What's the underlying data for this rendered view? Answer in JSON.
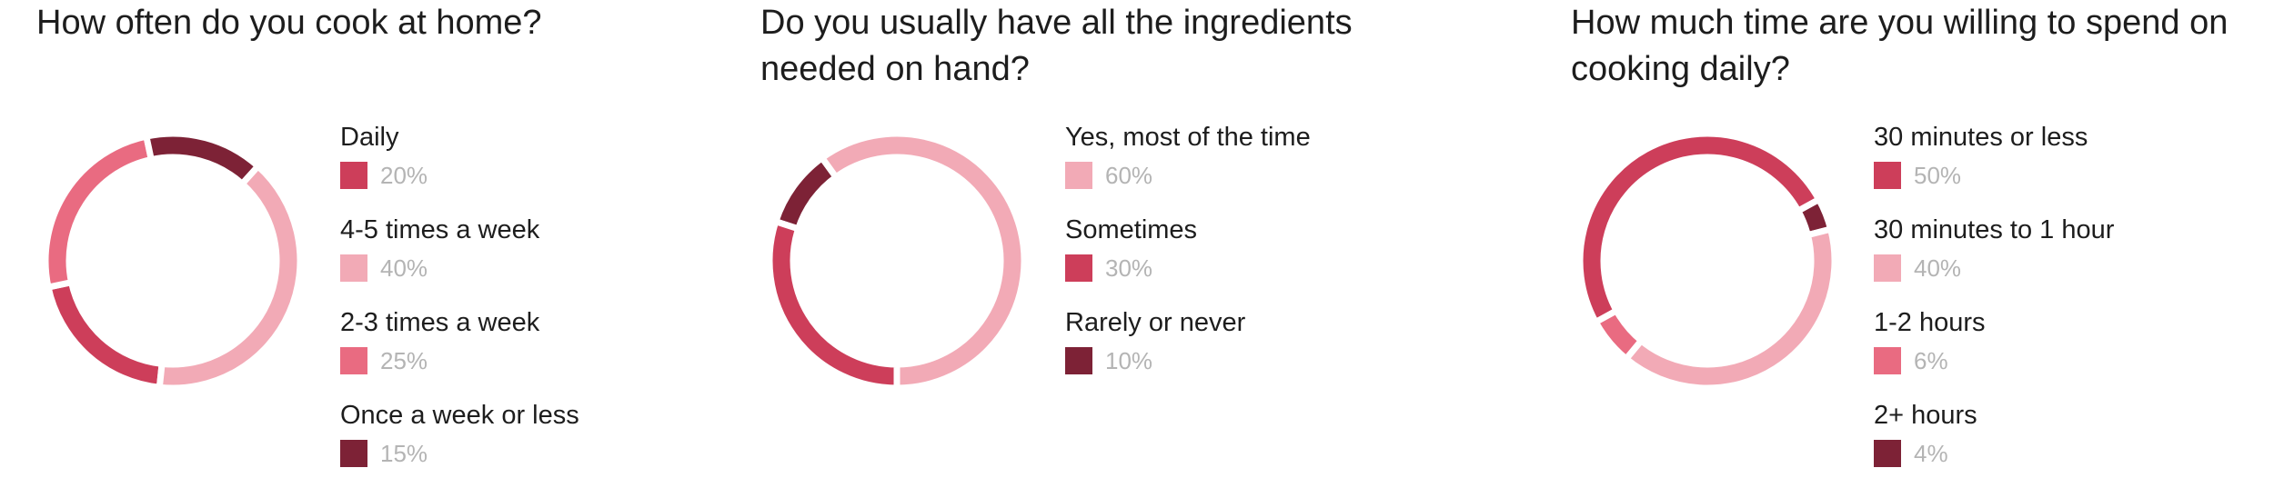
{
  "chart_data": [
    {
      "type": "pie",
      "title": "How often do you cook at home?",
      "categories": [
        "Daily",
        "4-5 times a week",
        "2-3 times a week",
        "Once a week or less"
      ],
      "values": [
        20,
        40,
        25,
        15
      ],
      "value_labels": [
        "20%",
        "40%",
        "25%",
        "15%"
      ],
      "colors": [
        "#cd3e5a",
        "#f2aab6",
        "#e96b81",
        "#7d2236"
      ],
      "legend": "right",
      "start_angle_deg": 186,
      "slice_order": [
        0,
        2,
        3,
        1
      ]
    },
    {
      "type": "pie",
      "title": "Do you usually have all the ingredients needed on hand?",
      "categories": [
        "Yes, most of the time",
        "Sometimes",
        "Rarely or never"
      ],
      "values": [
        60,
        30,
        10
      ],
      "value_labels": [
        "60%",
        "30%",
        "10%"
      ],
      "colors": [
        "#f2aab6",
        "#cd3e5a",
        "#7d2236"
      ],
      "legend": "right",
      "start_angle_deg": 288,
      "slice_order": [
        2,
        0,
        1
      ]
    },
    {
      "type": "pie",
      "title": "How much time are you willing to spend on cooking daily?",
      "categories": [
        "30 minutes or less",
        "30 minutes to 1 hour",
        "1-2 hours",
        "2+ hours"
      ],
      "values": [
        50,
        40,
        6,
        4
      ],
      "value_labels": [
        "50%",
        "40%",
        "6%",
        "4%"
      ],
      "colors": [
        "#cd3e5a",
        "#f2aab6",
        "#e96b81",
        "#7d2236"
      ],
      "legend": "right",
      "start_angle_deg": 241.2,
      "slice_order": [
        0,
        3,
        1,
        2
      ]
    }
  ]
}
